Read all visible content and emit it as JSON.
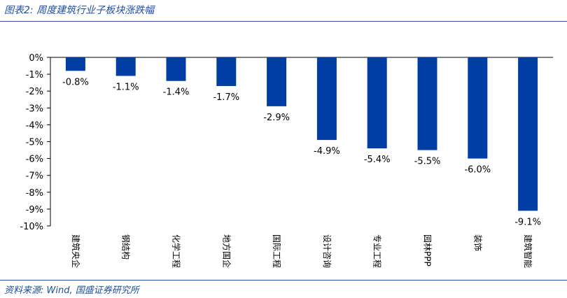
{
  "header": {
    "title": "图表2: 周度建筑行业子板块涨跌幅"
  },
  "footer": {
    "source": "资料来源: Wind, 国盛证券研究所"
  },
  "colors": {
    "bar": "#003DA5",
    "accent": "#1f4e9a"
  },
  "chart_data": {
    "type": "bar",
    "title": "",
    "xlabel": "",
    "ylabel": "",
    "categories": [
      "建筑央企",
      "钢结构",
      "化学工程",
      "地方国企",
      "国际工程",
      "设计咨询",
      "专业工程",
      "园林PPP",
      "装饰",
      "建筑智能"
    ],
    "values": [
      -0.8,
      -1.1,
      -1.4,
      -1.7,
      -2.9,
      -4.9,
      -5.4,
      -5.5,
      -6.0,
      -9.1
    ],
    "data_labels": [
      "-0.8%",
      "-1.1%",
      "-1.4%",
      "-1.7%",
      "-2.9%",
      "-4.9%",
      "-5.4%",
      "-5.5%",
      "-6.0%",
      "-9.1%"
    ],
    "ylim": [
      -10,
      0
    ],
    "yticks": [
      0,
      -1,
      -2,
      -3,
      -4,
      -5,
      -6,
      -7,
      -8,
      -9,
      -10
    ],
    "ytick_labels": [
      "0%",
      "-1%",
      "-2%",
      "-3%",
      "-4%",
      "-5%",
      "-6%",
      "-7%",
      "-8%",
      "-9%",
      "-10%"
    ],
    "grid": false,
    "legend": "none"
  }
}
